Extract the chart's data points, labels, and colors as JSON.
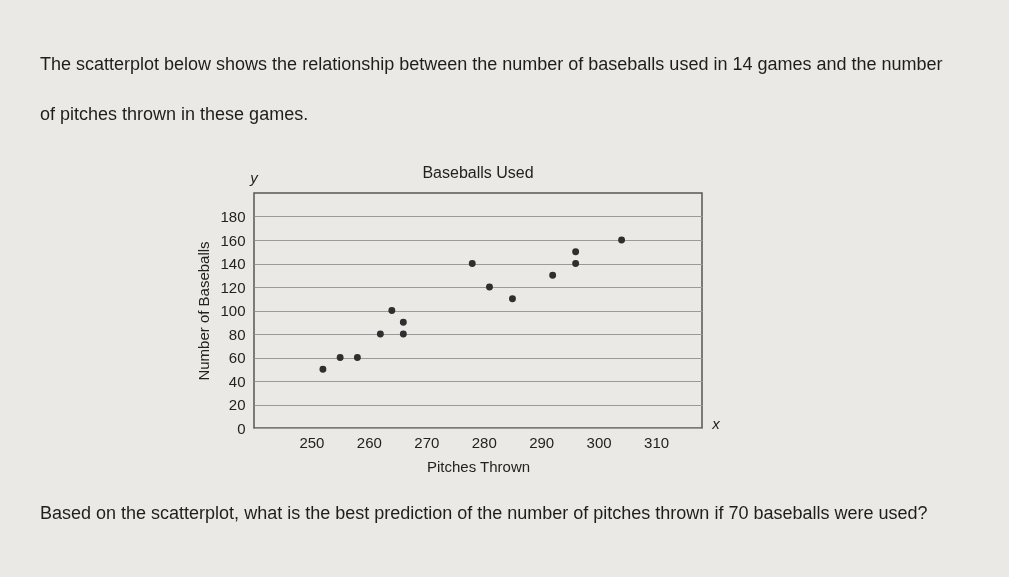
{
  "chart_data": {
    "type": "scatter",
    "title": "Baseballs Used",
    "xlabel": "Pitches Thrown",
    "ylabel": "Number of Baseballs",
    "annotations": [
      "The scatterplot below shows the relationship between the number of baseballs used in 14 games and the number of pitches thrown in these games.",
      "y",
      "x",
      "Based on the scatterplot, what is the best prediction of the number of pitches thrown if 70 baseballs were used?"
    ],
    "x": [
      252,
      255,
      258,
      262,
      264,
      266,
      266,
      278,
      281,
      285,
      292,
      296,
      296,
      304
    ],
    "series": [
      {
        "color": "#2f2f2f",
        "values": [
          50,
          60,
          60,
          80,
          100,
          90,
          80,
          140,
          120,
          110,
          130,
          150,
          140,
          160
        ]
      }
    ],
    "xlim": [
      240,
      318
    ],
    "xticks": [
      250,
      260,
      270,
      280,
      290,
      300,
      310
    ],
    "ylim": [
      0,
      200
    ],
    "yticks": [
      0,
      20,
      40,
      60,
      80,
      100,
      120,
      140,
      160,
      180
    ],
    "grid": "y",
    "marker": "circle"
  }
}
